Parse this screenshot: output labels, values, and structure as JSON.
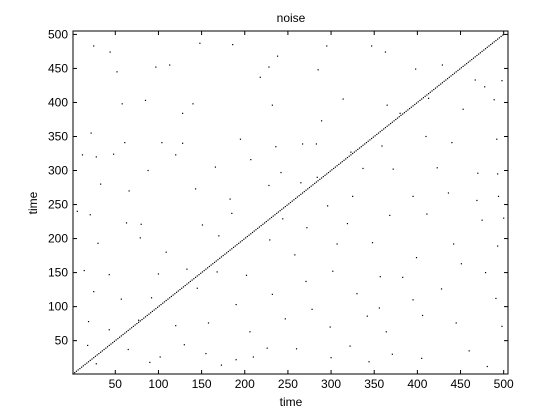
{
  "chart_data": {
    "type": "scatter",
    "title": "noise",
    "xlabel": "time",
    "ylabel": "time",
    "xlim": [
      1,
      505
    ],
    "ylim": [
      1,
      505
    ],
    "x_ticks": [
      50,
      100,
      150,
      200,
      250,
      300,
      350,
      400,
      450,
      500
    ],
    "y_ticks": [
      50,
      100,
      150,
      200,
      250,
      300,
      350,
      400,
      450,
      500
    ],
    "grid": false,
    "diagonal": {
      "from": 1,
      "to": 500,
      "step": 2
    },
    "points": [
      [
        25,
        483
      ],
      [
        28,
        320
      ],
      [
        44,
        474
      ],
      [
        52,
        445
      ],
      [
        97,
        452
      ],
      [
        113,
        455
      ],
      [
        148,
        487
      ],
      [
        186,
        485
      ],
      [
        218,
        437
      ],
      [
        228,
        452
      ],
      [
        238,
        468
      ],
      [
        285,
        448
      ],
      [
        295,
        483
      ],
      [
        347,
        483
      ],
      [
        363,
        474
      ],
      [
        398,
        449
      ],
      [
        429,
        455
      ],
      [
        467,
        433
      ],
      [
        478,
        423
      ],
      [
        498,
        432
      ],
      [
        58,
        398
      ],
      [
        85,
        403
      ],
      [
        128,
        384
      ],
      [
        140,
        398
      ],
      [
        232,
        396
      ],
      [
        289,
        373
      ],
      [
        314,
        405
      ],
      [
        365,
        396
      ],
      [
        380,
        384
      ],
      [
        413,
        406
      ],
      [
        453,
        390
      ],
      [
        489,
        404
      ],
      [
        22,
        355
      ],
      [
        61,
        341
      ],
      [
        104,
        341
      ],
      [
        128,
        340
      ],
      [
        195,
        346
      ],
      [
        236,
        335
      ],
      [
        267,
        339
      ],
      [
        283,
        339
      ],
      [
        323,
        327
      ],
      [
        359,
        336
      ],
      [
        410,
        350
      ],
      [
        440,
        341
      ],
      [
        492,
        346
      ],
      [
        12,
        323
      ],
      [
        48,
        324
      ],
      [
        88,
        300
      ],
      [
        120,
        323
      ],
      [
        166,
        305
      ],
      [
        207,
        316
      ],
      [
        242,
        297
      ],
      [
        284,
        290
      ],
      [
        337,
        303
      ],
      [
        372,
        302
      ],
      [
        423,
        304
      ],
      [
        470,
        296
      ],
      [
        493,
        295
      ],
      [
        33,
        280
      ],
      [
        66,
        270
      ],
      [
        143,
        273
      ],
      [
        183,
        258
      ],
      [
        228,
        278
      ],
      [
        265,
        282
      ],
      [
        296,
        248
      ],
      [
        325,
        262
      ],
      [
        395,
        262
      ],
      [
        436,
        267
      ],
      [
        469,
        256
      ],
      [
        494,
        262
      ],
      [
        6,
        240
      ],
      [
        21,
        235
      ],
      [
        63,
        223
      ],
      [
        80,
        221
      ],
      [
        151,
        220
      ],
      [
        185,
        237
      ],
      [
        244,
        229
      ],
      [
        272,
        216
      ],
      [
        319,
        222
      ],
      [
        368,
        234
      ],
      [
        411,
        236
      ],
      [
        475,
        227
      ],
      [
        500,
        230
      ],
      [
        30,
        193
      ],
      [
        79,
        201
      ],
      [
        109,
        180
      ],
      [
        170,
        204
      ],
      [
        229,
        198
      ],
      [
        258,
        176
      ],
      [
        307,
        192
      ],
      [
        348,
        194
      ],
      [
        399,
        172
      ],
      [
        442,
        192
      ],
      [
        493,
        189
      ],
      [
        14,
        153
      ],
      [
        43,
        147
      ],
      [
        100,
        148
      ],
      [
        133,
        155
      ],
      [
        168,
        151
      ],
      [
        202,
        146
      ],
      [
        271,
        137
      ],
      [
        302,
        152
      ],
      [
        357,
        144
      ],
      [
        383,
        143
      ],
      [
        451,
        163
      ],
      [
        479,
        150
      ],
      [
        25,
        122
      ],
      [
        57,
        111
      ],
      [
        92,
        113
      ],
      [
        145,
        127
      ],
      [
        190,
        103
      ],
      [
        232,
        118
      ],
      [
        278,
        96
      ],
      [
        330,
        119
      ],
      [
        356,
        98
      ],
      [
        395,
        110
      ],
      [
        428,
        126
      ],
      [
        491,
        112
      ],
      [
        19,
        78
      ],
      [
        43,
        66
      ],
      [
        77,
        80
      ],
      [
        120,
        72
      ],
      [
        158,
        76
      ],
      [
        206,
        63
      ],
      [
        247,
        82
      ],
      [
        299,
        70
      ],
      [
        342,
        86
      ],
      [
        364,
        63
      ],
      [
        406,
        87
      ],
      [
        445,
        76
      ],
      [
        498,
        71
      ],
      [
        18,
        43
      ],
      [
        65,
        37
      ],
      [
        102,
        26
      ],
      [
        130,
        44
      ],
      [
        155,
        31
      ],
      [
        190,
        22
      ],
      [
        226,
        39
      ],
      [
        260,
        38
      ],
      [
        300,
        25
      ],
      [
        322,
        42
      ],
      [
        371,
        30
      ],
      [
        405,
        24
      ],
      [
        460,
        35
      ],
      [
        481,
        12
      ],
      [
        28,
        16
      ],
      [
        90,
        18
      ],
      [
        173,
        14
      ],
      [
        210,
        26
      ],
      [
        344,
        19
      ]
    ]
  }
}
